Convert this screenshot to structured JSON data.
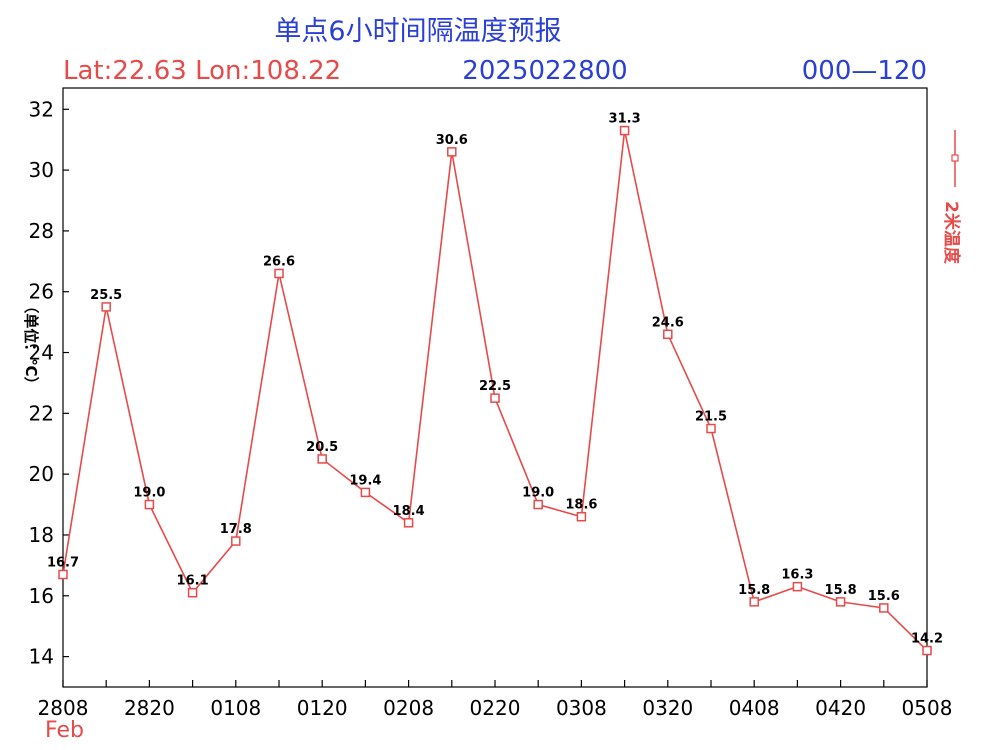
{
  "header": {
    "title": "单点6小时间隔温度预报",
    "location": "Lat:22.63 Lon:108.22",
    "init_time": "2025022800",
    "range": "000—120"
  },
  "legend": {
    "label": "2米温度"
  },
  "month_label": "Feb",
  "colors": {
    "title": "#2a3fd6",
    "series": "#e84a4a",
    "axis": "#000000"
  },
  "chart_data": {
    "type": "line",
    "ylabel": "（单位：℃）",
    "ylim": [
      13,
      32.7
    ],
    "yticks": [
      "14",
      "16",
      "18",
      "20",
      "22",
      "24",
      "26",
      "28",
      "30",
      "32"
    ],
    "xlim": [
      0,
      120
    ],
    "xtick_labels": [
      "2808",
      "2820",
      "0108",
      "0120",
      "0208",
      "0220",
      "0308",
      "0320",
      "0408",
      "0420",
      "0508"
    ],
    "x": [
      0,
      6,
      12,
      18,
      24,
      30,
      36,
      42,
      48,
      54,
      60,
      66,
      72,
      78,
      84,
      90,
      96,
      102,
      108,
      114,
      120
    ],
    "series": [
      {
        "name": "2米温度",
        "values": [
          16.7,
          25.5,
          19.0,
          16.1,
          17.8,
          26.6,
          20.5,
          19.4,
          18.4,
          30.6,
          22.5,
          19.0,
          18.6,
          31.3,
          24.6,
          21.5,
          15.8,
          16.3,
          15.8,
          15.6,
          14.2
        ],
        "labels": [
          "16.7",
          "25.5",
          "19.0",
          "16.1",
          "17.8",
          "26.6",
          "20.5",
          "19.4",
          "18.4",
          "30.6",
          "22.5",
          "19.0",
          "18.6",
          "31.3",
          "24.6",
          "21.5",
          "15.8",
          "16.3",
          "15.8",
          "15.6",
          "14.2"
        ]
      }
    ],
    "grid": false,
    "legend_position": "right"
  }
}
